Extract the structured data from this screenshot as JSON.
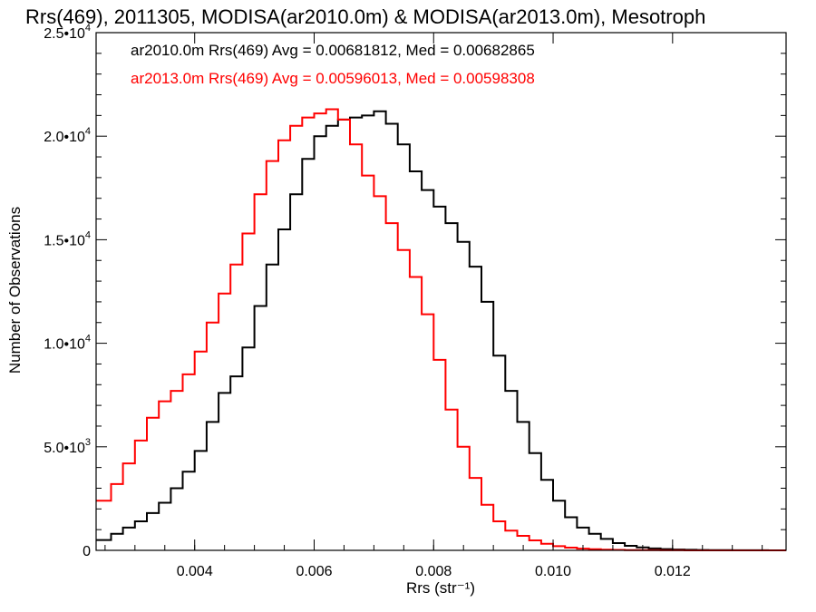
{
  "chart_data": {
    "type": "line",
    "title": "Rrs(469), 2011305, MODISA(ar2010.0m) & MODISA(ar2013.0m), Mesotroph",
    "xlabel": "Rrs (str⁻¹)",
    "ylabel": "Number of Observations",
    "xlim": [
      0.00235,
      0.0139
    ],
    "ylim": [
      0,
      25000
    ],
    "x_ticks": [
      0.004,
      0.006,
      0.008,
      0.01,
      0.012
    ],
    "x_tick_labels": [
      "0.004",
      "0.006",
      "0.008",
      "0.010",
      "0.012"
    ],
    "y_ticks": [
      0,
      5000,
      10000,
      15000,
      20000,
      25000
    ],
    "y_tick_labels": [
      {
        "base": "0",
        "exp": ""
      },
      {
        "base": "5.0•10",
        "exp": "3"
      },
      {
        "base": "1.0•10",
        "exp": "4"
      },
      {
        "base": "1.5•10",
        "exp": "4"
      },
      {
        "base": "2.0•10",
        "exp": "4"
      },
      {
        "base": "2.5•10",
        "exp": "4"
      }
    ],
    "grid": false,
    "legend_position": "top-left",
    "series": [
      {
        "name": "ar2010.0m Rrs(469) Avg = 0.00681812, Med = 0.00682865",
        "color": "#000000",
        "x": [
          0.00235,
          0.0026,
          0.0028,
          0.003,
          0.0032,
          0.0034,
          0.0036,
          0.0038,
          0.004,
          0.0042,
          0.0044,
          0.0046,
          0.0048,
          0.005,
          0.0052,
          0.0054,
          0.0056,
          0.0058,
          0.006,
          0.0062,
          0.0064,
          0.0066,
          0.0068,
          0.007,
          0.0072,
          0.0074,
          0.0076,
          0.0078,
          0.008,
          0.0082,
          0.0084,
          0.0086,
          0.0088,
          0.009,
          0.0092,
          0.0094,
          0.0096,
          0.0098,
          0.01,
          0.0102,
          0.0104,
          0.0106,
          0.0108,
          0.011,
          0.0112,
          0.0114,
          0.0116,
          0.0118,
          0.012,
          0.0122,
          0.0124,
          0.0126,
          0.0128,
          0.013,
          0.0132,
          0.0134,
          0.0136,
          0.0139
        ],
        "y": [
          500,
          800,
          1100,
          1400,
          1800,
          2300,
          3000,
          3800,
          4800,
          6200,
          7600,
          8400,
          9800,
          11800,
          13800,
          15500,
          17200,
          18900,
          20000,
          20500,
          20800,
          20900,
          21000,
          21200,
          20600,
          19600,
          18300,
          17400,
          16600,
          15800,
          14900,
          13700,
          12000,
          9400,
          7700,
          6200,
          4700,
          3400,
          2400,
          1600,
          1100,
          800,
          550,
          350,
          220,
          140,
          90,
          60,
          40,
          25,
          18,
          12,
          8,
          6,
          4,
          3,
          2,
          0
        ]
      },
      {
        "name": "ar2013.0m Rrs(469) Avg = 0.00596013, Med = 0.00598308",
        "color": "#ff0000",
        "x": [
          0.00235,
          0.0026,
          0.0028,
          0.003,
          0.0032,
          0.0034,
          0.0036,
          0.0038,
          0.004,
          0.0042,
          0.0044,
          0.0046,
          0.0048,
          0.005,
          0.0052,
          0.0054,
          0.0056,
          0.0058,
          0.006,
          0.0062,
          0.0064,
          0.0066,
          0.0068,
          0.007,
          0.0072,
          0.0074,
          0.0076,
          0.0078,
          0.008,
          0.0082,
          0.0084,
          0.0086,
          0.0088,
          0.009,
          0.0092,
          0.0094,
          0.0096,
          0.0098,
          0.01,
          0.0102,
          0.0104,
          0.0106,
          0.0108,
          0.011,
          0.0112,
          0.0114,
          0.0116,
          0.0118,
          0.012,
          0.0122,
          0.0124,
          0.0126,
          0.0128,
          0.013,
          0.0132,
          0.0134,
          0.0136,
          0.0139
        ],
        "y": [
          2400,
          3200,
          4200,
          5300,
          6400,
          7200,
          7700,
          8500,
          9600,
          11000,
          12400,
          13800,
          15300,
          17200,
          18800,
          19800,
          20500,
          20900,
          21100,
          21300,
          20800,
          19600,
          18100,
          17100,
          15800,
          14500,
          13200,
          11400,
          9200,
          6800,
          5000,
          3500,
          2200,
          1400,
          950,
          700,
          480,
          320,
          200,
          130,
          85,
          55,
          35,
          22,
          15,
          10,
          7,
          5,
          3,
          2,
          2,
          1,
          1,
          1,
          0,
          0,
          0,
          0
        ]
      }
    ]
  }
}
